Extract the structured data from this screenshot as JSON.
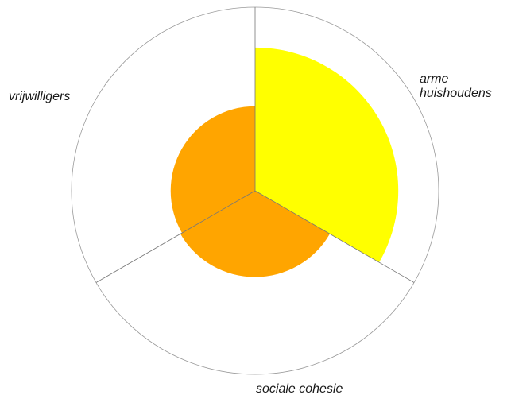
{
  "chart_data": {
    "type": "polar-area",
    "title": "",
    "categories": [
      "arme huishoudens",
      "sociale cohesie",
      "vrijwilligers"
    ],
    "label_lines": [
      [
        "arme",
        "huishoudens"
      ],
      [
        "sociale cohesie"
      ],
      [
        "vrijwilligers"
      ]
    ],
    "values": [
      0.78,
      0.47,
      0.46
    ],
    "range": [
      0,
      1
    ],
    "colors": [
      "#ffff00",
      "#ffa500",
      "#ffa500"
    ],
    "outline_color": "#999999",
    "grid": true,
    "legend": "none"
  }
}
